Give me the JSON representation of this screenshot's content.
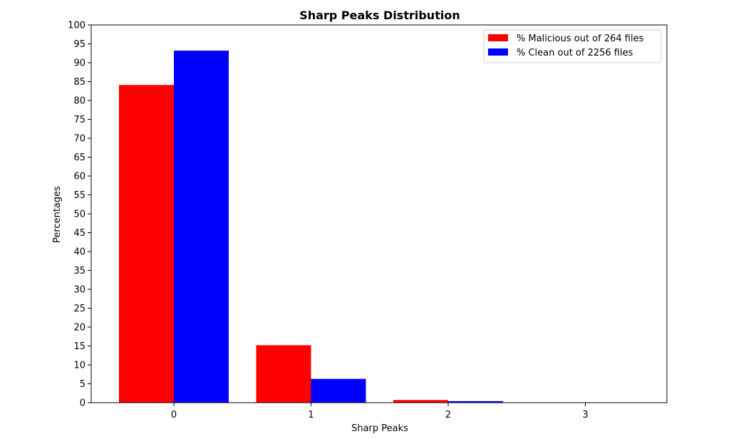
{
  "chart_data": {
    "type": "bar",
    "title": "Sharp Peaks Distribution",
    "xlabel": "Sharp Peaks",
    "ylabel": "Percentages",
    "categories": [
      "0",
      "1",
      "2",
      "3"
    ],
    "ylim": [
      0,
      100
    ],
    "yticks": [
      0,
      5,
      10,
      15,
      20,
      25,
      30,
      35,
      40,
      45,
      50,
      55,
      60,
      65,
      70,
      75,
      80,
      85,
      90,
      95,
      100
    ],
    "series": [
      {
        "name": "% Malicious out of 264 files",
        "color": "#ff0000",
        "values": [
          84.1,
          15.2,
          0.7,
          0.0
        ]
      },
      {
        "name": "% Clean out of 2256 files",
        "color": "#0000ff",
        "values": [
          93.2,
          6.3,
          0.4,
          0.0
        ]
      }
    ],
    "legend": "top-right",
    "grid": false
  }
}
